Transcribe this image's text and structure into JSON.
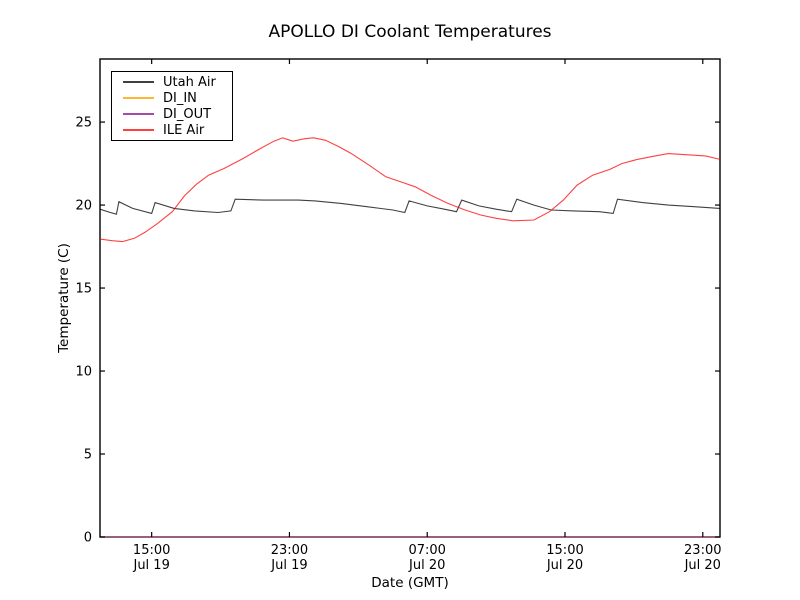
{
  "title": "APOLLO DI Coolant Temperatures",
  "chart_data": {
    "type": "line",
    "title": "APOLLO DI Coolant Temperatures",
    "xlabel": "Date (GMT)",
    "ylabel": "Temperature (C)",
    "grid": false,
    "legend_position": "upper-left",
    "ylim": [
      0,
      28.8
    ],
    "yticks": [
      0,
      5,
      10,
      15,
      20,
      25
    ],
    "ytick_labels": [
      "0",
      "5",
      "10",
      "15",
      "20",
      "25"
    ],
    "xlim_hours": [
      0,
      36
    ],
    "x_origin": "Jul 19 12:00",
    "x_axis_ticks": [
      {
        "hours": 3,
        "time": "15:00",
        "date": "Jul 19"
      },
      {
        "hours": 11,
        "time": "23:00",
        "date": "Jul 19"
      },
      {
        "hours": 19,
        "time": "07:00",
        "date": "Jul 20"
      },
      {
        "hours": 27,
        "time": "15:00",
        "date": "Jul 20"
      },
      {
        "hours": 35,
        "time": "23:00",
        "date": "Jul 20"
      }
    ],
    "series": [
      {
        "name": "Utah Air",
        "color": "#000000",
        "opacity": 0.75,
        "points": [
          [
            0,
            19.75
          ],
          [
            0.6,
            19.55
          ],
          [
            0.95,
            19.45
          ],
          [
            1.1,
            20.2
          ],
          [
            1.9,
            19.8
          ],
          [
            3.0,
            19.5
          ],
          [
            3.2,
            20.15
          ],
          [
            4.3,
            19.8
          ],
          [
            5.5,
            19.65
          ],
          [
            6.85,
            19.55
          ],
          [
            7.6,
            19.65
          ],
          [
            7.85,
            20.35
          ],
          [
            9.5,
            20.3
          ],
          [
            11.5,
            20.3
          ],
          [
            12.5,
            20.25
          ],
          [
            14,
            20.1
          ],
          [
            15.5,
            19.9
          ],
          [
            17,
            19.7
          ],
          [
            17.7,
            19.55
          ],
          [
            17.95,
            20.25
          ],
          [
            19,
            19.95
          ],
          [
            20,
            19.75
          ],
          [
            20.7,
            19.6
          ],
          [
            21.0,
            20.3
          ],
          [
            22,
            19.95
          ],
          [
            23,
            19.75
          ],
          [
            23.9,
            19.6
          ],
          [
            24.2,
            20.35
          ],
          [
            25.2,
            20.0
          ],
          [
            26.2,
            19.7
          ],
          [
            27.5,
            19.65
          ],
          [
            29,
            19.6
          ],
          [
            29.8,
            19.5
          ],
          [
            30.05,
            20.35
          ],
          [
            31.5,
            20.15
          ],
          [
            33,
            20.0
          ],
          [
            34.5,
            19.9
          ],
          [
            36,
            19.8
          ]
        ]
      },
      {
        "name": "DI_IN",
        "color": "#ffa500",
        "opacity": 0.8,
        "points": [
          [
            0,
            0
          ],
          [
            36,
            0
          ]
        ]
      },
      {
        "name": "DI_OUT",
        "color": "#800080",
        "opacity": 0.7,
        "points": [
          [
            0,
            0
          ],
          [
            36,
            0
          ]
        ]
      },
      {
        "name": "ILE Air",
        "color": "#ff0000",
        "opacity": 0.75,
        "points": [
          [
            0,
            17.95
          ],
          [
            0.7,
            17.85
          ],
          [
            1.3,
            17.8
          ],
          [
            2.0,
            18.0
          ],
          [
            2.6,
            18.35
          ],
          [
            3.3,
            18.85
          ],
          [
            4.2,
            19.6
          ],
          [
            4.9,
            20.55
          ],
          [
            5.6,
            21.25
          ],
          [
            6.3,
            21.8
          ],
          [
            7.2,
            22.2
          ],
          [
            8.3,
            22.8
          ],
          [
            9.3,
            23.4
          ],
          [
            10.1,
            23.85
          ],
          [
            10.6,
            24.05
          ],
          [
            11.2,
            23.85
          ],
          [
            11.9,
            24.0
          ],
          [
            12.4,
            24.05
          ],
          [
            13.1,
            23.9
          ],
          [
            13.9,
            23.5
          ],
          [
            14.6,
            23.1
          ],
          [
            15.7,
            22.35
          ],
          [
            16.6,
            21.7
          ],
          [
            17.6,
            21.35
          ],
          [
            18.3,
            21.1
          ],
          [
            19.2,
            20.6
          ],
          [
            20.2,
            20.1
          ],
          [
            21.2,
            19.7
          ],
          [
            22.1,
            19.4
          ],
          [
            23,
            19.2
          ],
          [
            24,
            19.05
          ],
          [
            25.2,
            19.1
          ],
          [
            26.1,
            19.6
          ],
          [
            26.9,
            20.3
          ],
          [
            27.7,
            21.2
          ],
          [
            28.6,
            21.8
          ],
          [
            29.6,
            22.15
          ],
          [
            30.3,
            22.5
          ],
          [
            31.2,
            22.75
          ],
          [
            32.2,
            22.95
          ],
          [
            33,
            23.1
          ],
          [
            33.8,
            23.05
          ],
          [
            34.6,
            23.0
          ],
          [
            35.2,
            22.95
          ],
          [
            36,
            22.75
          ]
        ]
      }
    ]
  }
}
